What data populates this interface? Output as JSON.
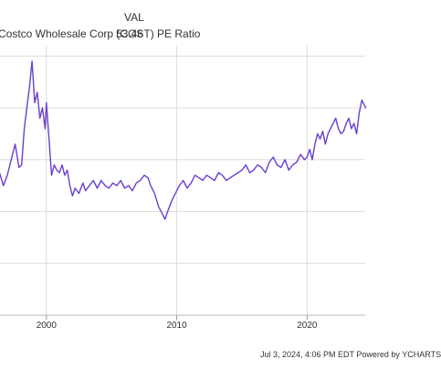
{
  "legend": {
    "series_label": "Costco Wholesale Corp (COST) PE Ratio",
    "value_header": "VAL",
    "value": "53.46"
  },
  "footer": {
    "note": "Jul 3, 2024, 4:06 PM EDT Powered by YCHARTS"
  },
  "colors": {
    "series": "#6a3fd0",
    "grid": "#dddddd",
    "text": "#333333",
    "background": "#ffffff"
  },
  "chart_data": {
    "type": "line",
    "title": "",
    "xlabel": "",
    "ylabel": "",
    "x_ticks": [
      2000,
      2010,
      2020
    ],
    "xlim": [
      1996.3,
      2024.6
    ],
    "y_gridlines": [
      1,
      2,
      3,
      4,
      5
    ],
    "ylim": [
      0,
      5.2
    ],
    "grid": true,
    "series": [
      {
        "name": "Costco Wholesale Corp (COST) PE Ratio",
        "x": [
          1996.4,
          1996.7,
          1997.0,
          1997.3,
          1997.6,
          1997.9,
          1998.1,
          1998.3,
          1998.5,
          1998.7,
          1998.9,
          1999.1,
          1999.3,
          1999.5,
          1999.7,
          1999.9,
          2000.0,
          2000.2,
          2000.4,
          2000.6,
          2000.8,
          2001.0,
          2001.2,
          2001.4,
          2001.6,
          2001.8,
          2002.0,
          2002.2,
          2002.5,
          2002.8,
          2003.0,
          2003.3,
          2003.6,
          2003.9,
          2004.2,
          2004.5,
          2004.8,
          2005.1,
          2005.4,
          2005.7,
          2006.0,
          2006.3,
          2006.6,
          2006.9,
          2007.2,
          2007.5,
          2007.8,
          2008.0,
          2008.3,
          2008.6,
          2008.9,
          2009.1,
          2009.3,
          2009.6,
          2009.9,
          2010.2,
          2010.5,
          2010.8,
          2011.1,
          2011.4,
          2011.7,
          2012.0,
          2012.3,
          2012.6,
          2012.9,
          2013.2,
          2013.5,
          2013.8,
          2014.1,
          2014.4,
          2014.7,
          2015.0,
          2015.3,
          2015.6,
          2015.9,
          2016.2,
          2016.5,
          2016.8,
          2017.1,
          2017.4,
          2017.7,
          2018.0,
          2018.3,
          2018.6,
          2018.9,
          2019.2,
          2019.5,
          2019.8,
          2020.0,
          2020.2,
          2020.4,
          2020.6,
          2020.8,
          2021.0,
          2021.2,
          2021.4,
          2021.6,
          2021.8,
          2022.0,
          2022.2,
          2022.4,
          2022.6,
          2022.8,
          2023.0,
          2023.2,
          2023.4,
          2023.6,
          2023.8,
          2024.0,
          2024.2,
          2024.5
        ],
        "y": [
          2.75,
          2.5,
          2.7,
          3.0,
          3.3,
          2.85,
          2.9,
          3.6,
          4.0,
          4.4,
          4.9,
          4.1,
          4.3,
          3.8,
          4.0,
          3.6,
          4.1,
          3.4,
          2.7,
          2.9,
          2.8,
          2.75,
          2.9,
          2.7,
          2.8,
          2.5,
          2.3,
          2.45,
          2.35,
          2.55,
          2.4,
          2.5,
          2.6,
          2.45,
          2.6,
          2.5,
          2.45,
          2.55,
          2.5,
          2.6,
          2.45,
          2.5,
          2.4,
          2.55,
          2.6,
          2.7,
          2.65,
          2.5,
          2.35,
          2.1,
          1.95,
          1.85,
          2.0,
          2.2,
          2.35,
          2.5,
          2.6,
          2.45,
          2.55,
          2.7,
          2.65,
          2.6,
          2.7,
          2.65,
          2.6,
          2.75,
          2.7,
          2.6,
          2.65,
          2.7,
          2.75,
          2.8,
          2.9,
          2.75,
          2.8,
          2.9,
          2.85,
          2.75,
          2.95,
          3.05,
          2.9,
          2.85,
          3.0,
          2.8,
          2.9,
          2.95,
          3.1,
          3.0,
          3.05,
          3.2,
          3.0,
          3.3,
          3.5,
          3.4,
          3.55,
          3.3,
          3.5,
          3.6,
          3.7,
          3.8,
          3.6,
          3.5,
          3.55,
          3.7,
          3.8,
          3.6,
          3.7,
          3.5,
          3.9,
          4.15,
          4.0
        ]
      }
    ]
  }
}
